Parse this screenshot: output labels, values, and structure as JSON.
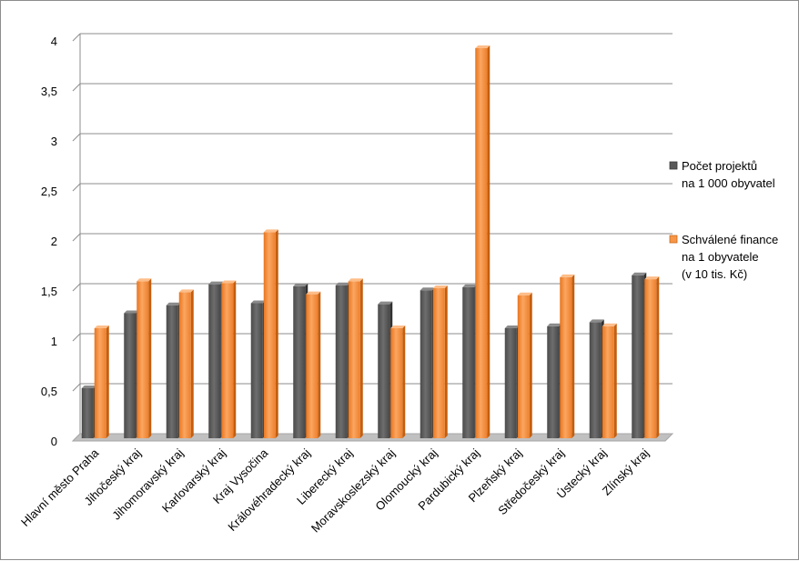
{
  "chart_data": {
    "type": "bar",
    "categories": [
      "Hlavní město Praha",
      "Jihočeský kraj",
      "Jihomoravský kraj",
      "Karlovarský kraj",
      "Kraj Vysočina",
      "Královéhradecký kraj",
      "Liberecký kraj",
      "Moravskoslezský kraj",
      "Olomoucký kraj",
      "Pardubický kraj",
      "Plzeňský kraj",
      "Středočeský kraj",
      "Ústecký kraj",
      "Zlínský kraj"
    ],
    "series": [
      {
        "name": "Počet projektů na 1 000 obyvatel",
        "legend_lines": [
          "Počet projektů",
          "na 1 000 obyvatel"
        ],
        "color": "#595959",
        "values": [
          0.5,
          1.25,
          1.33,
          1.54,
          1.35,
          1.52,
          1.53,
          1.34,
          1.48,
          1.51,
          1.1,
          1.12,
          1.16,
          1.63
        ]
      },
      {
        "name": "Schválené finance na 1 obyvatele (v 10 tis. Kč)",
        "legend_lines": [
          "Schválené finance",
          "na 1 obyvatele",
          "(v 10 tis. Kč)"
        ],
        "color": "#f79646",
        "values": [
          1.1,
          1.57,
          1.46,
          1.55,
          2.06,
          1.44,
          1.57,
          1.1,
          1.5,
          3.9,
          1.43,
          1.61,
          1.12,
          1.59
        ]
      }
    ],
    "yticks": [
      "0",
      "0,5",
      "1",
      "1,5",
      "2",
      "2,5",
      "3",
      "3,5",
      "4"
    ],
    "ylim": [
      0,
      4
    ],
    "grid": true,
    "legend_position": "right",
    "title": "",
    "xlabel": "",
    "ylabel": ""
  }
}
